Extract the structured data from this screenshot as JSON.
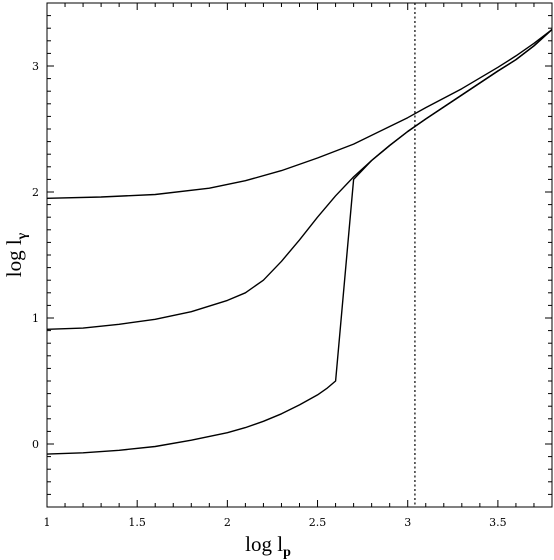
{
  "chart_data": {
    "type": "line",
    "xlabel_main": "log  l",
    "xlabel_sub": "p",
    "ylabel_main": "log  l",
    "ylabel_sub": "γ",
    "xlim": [
      1,
      3.8
    ],
    "ylim": [
      -0.5,
      3.5
    ],
    "grid": false,
    "legend": "none",
    "x_ticks": [
      "1",
      "1.5",
      "2",
      "2.5",
      "3",
      "3.5"
    ],
    "y_ticks": [
      "0",
      "1",
      "2",
      "3"
    ],
    "x_tick_values": [
      1,
      1.5,
      2,
      2.5,
      3,
      3.5
    ],
    "y_tick_values": [
      0,
      1,
      2,
      3
    ],
    "vline": {
      "x": 3.04,
      "style": "dotted"
    },
    "series": [
      {
        "points": [
          [
            1.0,
            1.95
          ],
          [
            1.3,
            1.96
          ],
          [
            1.6,
            1.98
          ],
          [
            1.9,
            2.03
          ],
          [
            2.1,
            2.09
          ],
          [
            2.3,
            2.17
          ],
          [
            2.5,
            2.27
          ],
          [
            2.7,
            2.38
          ],
          [
            2.9,
            2.52
          ],
          [
            3.0,
            2.59
          ],
          [
            3.1,
            2.67
          ],
          [
            3.3,
            2.82
          ],
          [
            3.5,
            2.99
          ],
          [
            3.6,
            3.08
          ],
          [
            3.7,
            3.18
          ],
          [
            3.8,
            3.29
          ]
        ]
      },
      {
        "points": [
          [
            1.0,
            0.91
          ],
          [
            1.2,
            0.92
          ],
          [
            1.4,
            0.95
          ],
          [
            1.6,
            0.99
          ],
          [
            1.8,
            1.05
          ],
          [
            2.0,
            1.14
          ],
          [
            2.1,
            1.2
          ],
          [
            2.2,
            1.3
          ],
          [
            2.3,
            1.45
          ],
          [
            2.4,
            1.62
          ],
          [
            2.5,
            1.8
          ],
          [
            2.6,
            1.97
          ],
          [
            2.7,
            2.12
          ],
          [
            2.8,
            2.25
          ],
          [
            2.9,
            2.37
          ],
          [
            3.0,
            2.48
          ],
          [
            3.1,
            2.58
          ],
          [
            3.3,
            2.77
          ],
          [
            3.5,
            2.96
          ],
          [
            3.6,
            3.05
          ],
          [
            3.7,
            3.16
          ],
          [
            3.8,
            3.29
          ]
        ]
      },
      {
        "points": [
          [
            1.0,
            -0.08
          ],
          [
            1.2,
            -0.07
          ],
          [
            1.4,
            -0.05
          ],
          [
            1.6,
            -0.02
          ],
          [
            1.8,
            0.03
          ],
          [
            2.0,
            0.09
          ],
          [
            2.1,
            0.13
          ],
          [
            2.2,
            0.18
          ],
          [
            2.3,
            0.24
          ],
          [
            2.4,
            0.31
          ],
          [
            2.5,
            0.39
          ],
          [
            2.55,
            0.44
          ],
          [
            2.6,
            0.5
          ],
          [
            2.7,
            2.1
          ],
          [
            2.8,
            2.25
          ],
          [
            2.9,
            2.37
          ],
          [
            3.0,
            2.48
          ],
          [
            3.1,
            2.58
          ],
          [
            3.3,
            2.77
          ],
          [
            3.5,
            2.96
          ],
          [
            3.6,
            3.05
          ],
          [
            3.7,
            3.16
          ],
          [
            3.8,
            3.29
          ]
        ]
      }
    ]
  }
}
